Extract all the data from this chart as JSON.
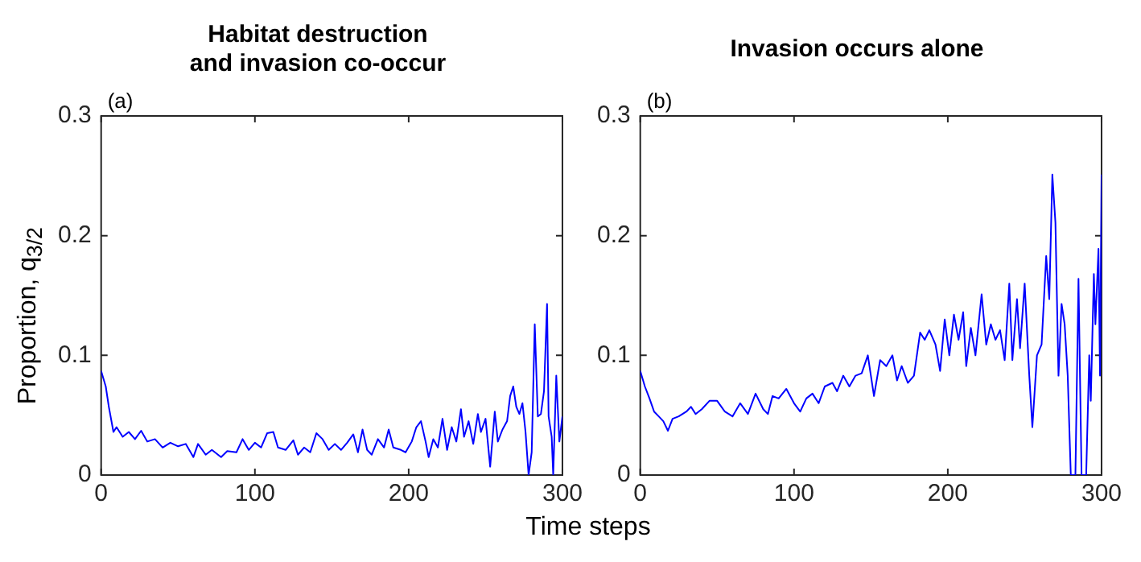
{
  "chart_data": [
    {
      "type": "line",
      "title": "Habitat destruction\nand invasion co-occur",
      "annotations": [
        "(a)"
      ],
      "ylabel": "Proportion, q$_{3/2}$",
      "xlabel": "Time steps",
      "xlim": [
        0,
        300
      ],
      "xticks": [
        0,
        100,
        200,
        300
      ],
      "ylim": [
        0,
        0.3
      ],
      "yticks": [
        0,
        0.1,
        0.2,
        0.3
      ],
      "grid": false,
      "legend": false,
      "series": [
        {
          "color": "#0000ff",
          "x": [
            0,
            3,
            5,
            8,
            10,
            14,
            18,
            22,
            26,
            30,
            35,
            40,
            45,
            50,
            55,
            60,
            63,
            68,
            72,
            78,
            82,
            88,
            92,
            96,
            100,
            104,
            108,
            112,
            115,
            120,
            125,
            128,
            132,
            136,
            140,
            144,
            148,
            152,
            156,
            160,
            164,
            167,
            170,
            173,
            176,
            180,
            184,
            187,
            190,
            195,
            198,
            202,
            205,
            208,
            211,
            213,
            216,
            219,
            222,
            225,
            228,
            231,
            234,
            236,
            239,
            242,
            245,
            247,
            250,
            253,
            256,
            258,
            261,
            264,
            266,
            268,
            270,
            272,
            274,
            276,
            278,
            280,
            282,
            284,
            286,
            288,
            290,
            291,
            293,
            294,
            296,
            298,
            300
          ],
          "values": [
            0.087,
            0.074,
            0.057,
            0.036,
            0.04,
            0.032,
            0.036,
            0.03,
            0.037,
            0.028,
            0.03,
            0.023,
            0.027,
            0.024,
            0.026,
            0.015,
            0.026,
            0.017,
            0.021,
            0.015,
            0.02,
            0.019,
            0.03,
            0.021,
            0.027,
            0.023,
            0.035,
            0.036,
            0.023,
            0.021,
            0.029,
            0.017,
            0.023,
            0.019,
            0.035,
            0.03,
            0.021,
            0.026,
            0.021,
            0.027,
            0.034,
            0.019,
            0.038,
            0.021,
            0.017,
            0.03,
            0.023,
            0.038,
            0.023,
            0.021,
            0.019,
            0.028,
            0.04,
            0.045,
            0.028,
            0.015,
            0.03,
            0.023,
            0.047,
            0.021,
            0.04,
            0.028,
            0.055,
            0.032,
            0.045,
            0.026,
            0.051,
            0.036,
            0.047,
            0.007,
            0.053,
            0.028,
            0.038,
            0.045,
            0.066,
            0.074,
            0.057,
            0.051,
            0.06,
            0.036,
            0,
            0.019,
            0.126,
            0.049,
            0.051,
            0.07,
            0.143,
            0.049,
            0.032,
            0,
            0.083,
            0.028,
            0.049
          ]
        }
      ]
    },
    {
      "type": "line",
      "title": "Invasion occurs alone",
      "annotations": [
        "(b)"
      ],
      "xlim": [
        0,
        300
      ],
      "xticks": [
        0,
        100,
        200,
        300
      ],
      "ylim": [
        0,
        0.3
      ],
      "yticks": [
        0,
        0.1,
        0.2,
        0.3
      ],
      "grid": false,
      "legend": false,
      "series": [
        {
          "color": "#0000ff",
          "x": [
            0,
            3,
            6,
            9,
            12,
            15,
            18,
            21,
            25,
            30,
            33,
            36,
            40,
            45,
            50,
            55,
            60,
            65,
            70,
            75,
            80,
            83,
            86,
            90,
            95,
            100,
            104,
            108,
            112,
            116,
            120,
            125,
            128,
            132,
            136,
            140,
            144,
            148,
            150,
            152,
            156,
            160,
            164,
            167,
            170,
            174,
            178,
            182,
            185,
            188,
            192,
            195,
            198,
            201,
            204,
            207,
            210,
            212,
            215,
            218,
            222,
            225,
            228,
            231,
            234,
            237,
            240,
            242,
            245,
            247,
            250,
            253,
            255,
            258,
            261,
            264,
            266,
            268,
            270,
            272,
            274,
            276,
            278,
            280,
            283,
            285,
            287,
            290,
            292,
            293,
            295,
            296,
            298,
            299,
            300
          ],
          "values": [
            0.087,
            0.074,
            0.064,
            0.053,
            0.049,
            0.045,
            0.037,
            0.047,
            0.049,
            0.053,
            0.057,
            0.051,
            0.055,
            0.062,
            0.062,
            0.053,
            0.049,
            0.06,
            0.051,
            0.068,
            0.055,
            0.051,
            0.066,
            0.064,
            0.072,
            0.06,
            0.053,
            0.064,
            0.068,
            0.06,
            0.074,
            0.077,
            0.07,
            0.083,
            0.074,
            0.083,
            0.085,
            0.1,
            0.083,
            0.066,
            0.096,
            0.091,
            0.1,
            0.079,
            0.091,
            0.077,
            0.083,
            0.119,
            0.113,
            0.121,
            0.109,
            0.087,
            0.13,
            0.1,
            0.134,
            0.113,
            0.136,
            0.091,
            0.123,
            0.1,
            0.151,
            0.109,
            0.126,
            0.113,
            0.121,
            0.096,
            0.16,
            0.096,
            0.147,
            0.106,
            0.16,
            0.083,
            0.04,
            0.1,
            0.109,
            0.183,
            0.147,
            0.251,
            0.211,
            0.083,
            0.143,
            0.126,
            0.083,
            0,
            0,
            0.164,
            0,
            0,
            0.1,
            0.062,
            0.168,
            0.126,
            0.189,
            0.083,
            0.251
          ]
        }
      ]
    }
  ]
}
